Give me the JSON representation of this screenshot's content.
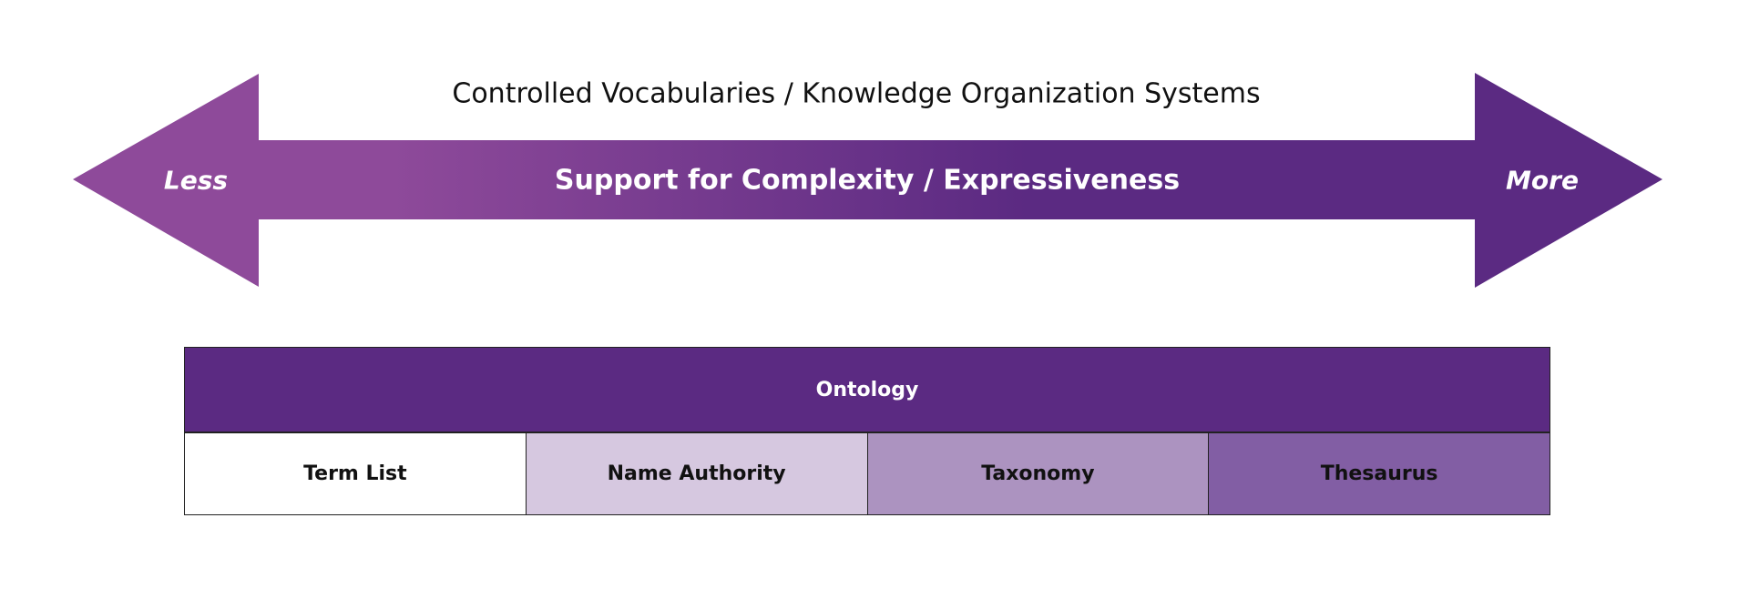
{
  "heading": "Controlled Vocabularies / Knowledge Organization Systems",
  "arrow": {
    "label": "Support for Complexity / Expressiveness",
    "left_label": "Less",
    "right_label": "More",
    "gradient_start": "#8e4a9a",
    "gradient_end": "#5b2a82"
  },
  "ontology": {
    "label": "Ontology",
    "color": "#5b2a82"
  },
  "types": [
    {
      "label": "Term List",
      "color": "#ffffff"
    },
    {
      "label": "Name Authority",
      "color": "#d6c8e0"
    },
    {
      "label": "Taxonomy",
      "color": "#ac93c0"
    },
    {
      "label": "Thesaurus",
      "color": "#825ea4"
    }
  ]
}
